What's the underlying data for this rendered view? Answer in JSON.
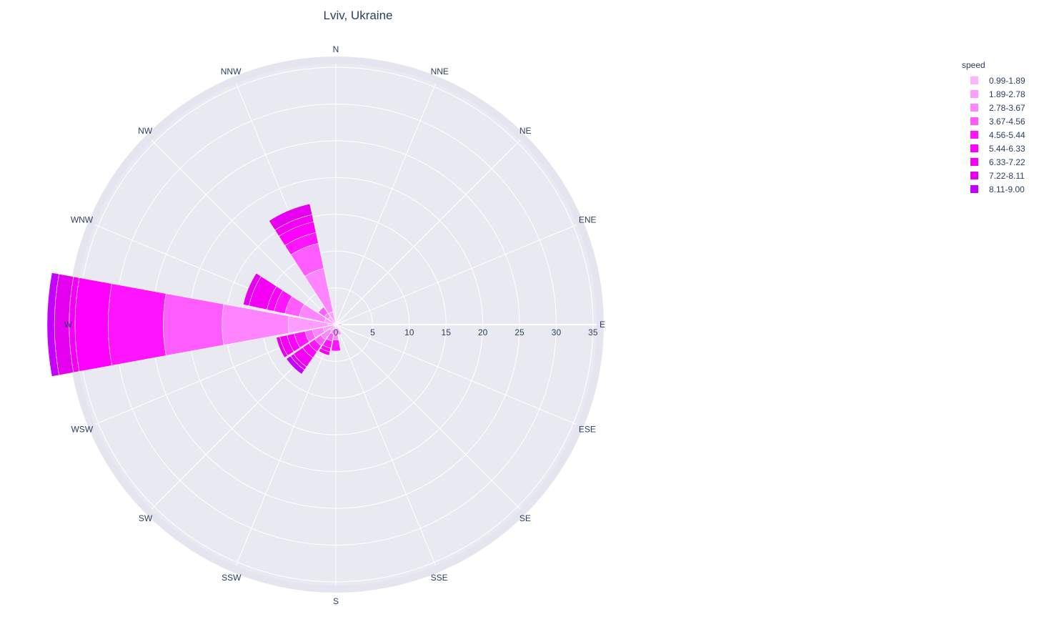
{
  "chart_data": {
    "type": "barpolar",
    "title": "Lviv, Ukraine",
    "legend_title": "speed",
    "legend_position": "top-right",
    "directions": [
      "N",
      "NNE",
      "NE",
      "ENE",
      "E",
      "ESE",
      "SE",
      "SSE",
      "S",
      "SSW",
      "SW",
      "WSW",
      "W",
      "WNW",
      "NW",
      "NNW"
    ],
    "radial_ticks": [
      "0",
      "5",
      "10",
      "15",
      "20",
      "25",
      "30",
      "35"
    ],
    "radial_range": [
      0,
      35.5
    ],
    "grid": true,
    "series": [
      {
        "name": "0.99-1.89",
        "color": "#ffb4ff",
        "values": [
          0.3,
          0.3,
          0.3,
          0.3,
          0.8,
          0.4,
          0.3,
          0.5,
          0.5,
          0.3,
          0.3,
          0.3,
          1.0,
          0.4,
          0.3,
          0.3
        ]
      },
      {
        "name": "1.89-2.78",
        "color": "#ff9cff",
        "values": [
          0,
          0,
          0,
          0,
          0,
          0,
          0,
          1.0,
          0.8,
          0.5,
          0.7,
          1.5,
          5.5,
          1.2,
          1.0,
          1.5
        ]
      },
      {
        "name": "2.78-3.67",
        "color": "#ff84ff",
        "values": [
          0,
          0,
          0,
          0,
          0,
          0,
          0,
          0,
          0.8,
          0.5,
          1.5,
          1.5,
          9.0,
          3.5,
          0.6,
          6.0
        ]
      },
      {
        "name": "3.67-4.56",
        "color": "#ff5cff",
        "values": [
          0,
          0,
          0,
          0,
          0,
          0,
          0,
          0,
          0,
          1.0,
          1.0,
          1.0,
          8.0,
          2.0,
          1.0,
          3.5
        ]
      },
      {
        "name": "4.56-5.44",
        "color": "#ff14ff",
        "values": [
          0,
          0,
          0,
          0,
          0,
          0,
          0,
          0,
          1.5,
          1.0,
          1.0,
          1.5,
          7.5,
          1.5,
          0,
          1.5
        ]
      },
      {
        "name": "5.44-6.33",
        "color": "#ff00ff",
        "values": [
          0,
          0,
          0,
          0,
          0,
          0,
          0,
          0,
          0,
          0.5,
          1.0,
          1.0,
          4.5,
          1.0,
          0,
          1.5
        ]
      },
      {
        "name": "6.33-7.22",
        "color": "#f400f4",
        "values": [
          0,
          0,
          0,
          0,
          0,
          0,
          0,
          0,
          0,
          0.5,
          1.5,
          1.0,
          0.8,
          2.5,
          0,
          1.0
        ]
      },
      {
        "name": "7.22-8.11",
        "color": "#e600f0",
        "values": [
          0,
          0,
          0,
          0,
          0,
          0,
          0,
          0,
          0,
          0,
          0.5,
          0.5,
          2.0,
          0.8,
          0,
          1.5
        ]
      },
      {
        "name": "8.11-9.00",
        "color": "#c400ff",
        "values": [
          0,
          0,
          0,
          0,
          0,
          0,
          0,
          0,
          0,
          0,
          0.7,
          0,
          1.0,
          0,
          0,
          0
        ]
      }
    ]
  }
}
